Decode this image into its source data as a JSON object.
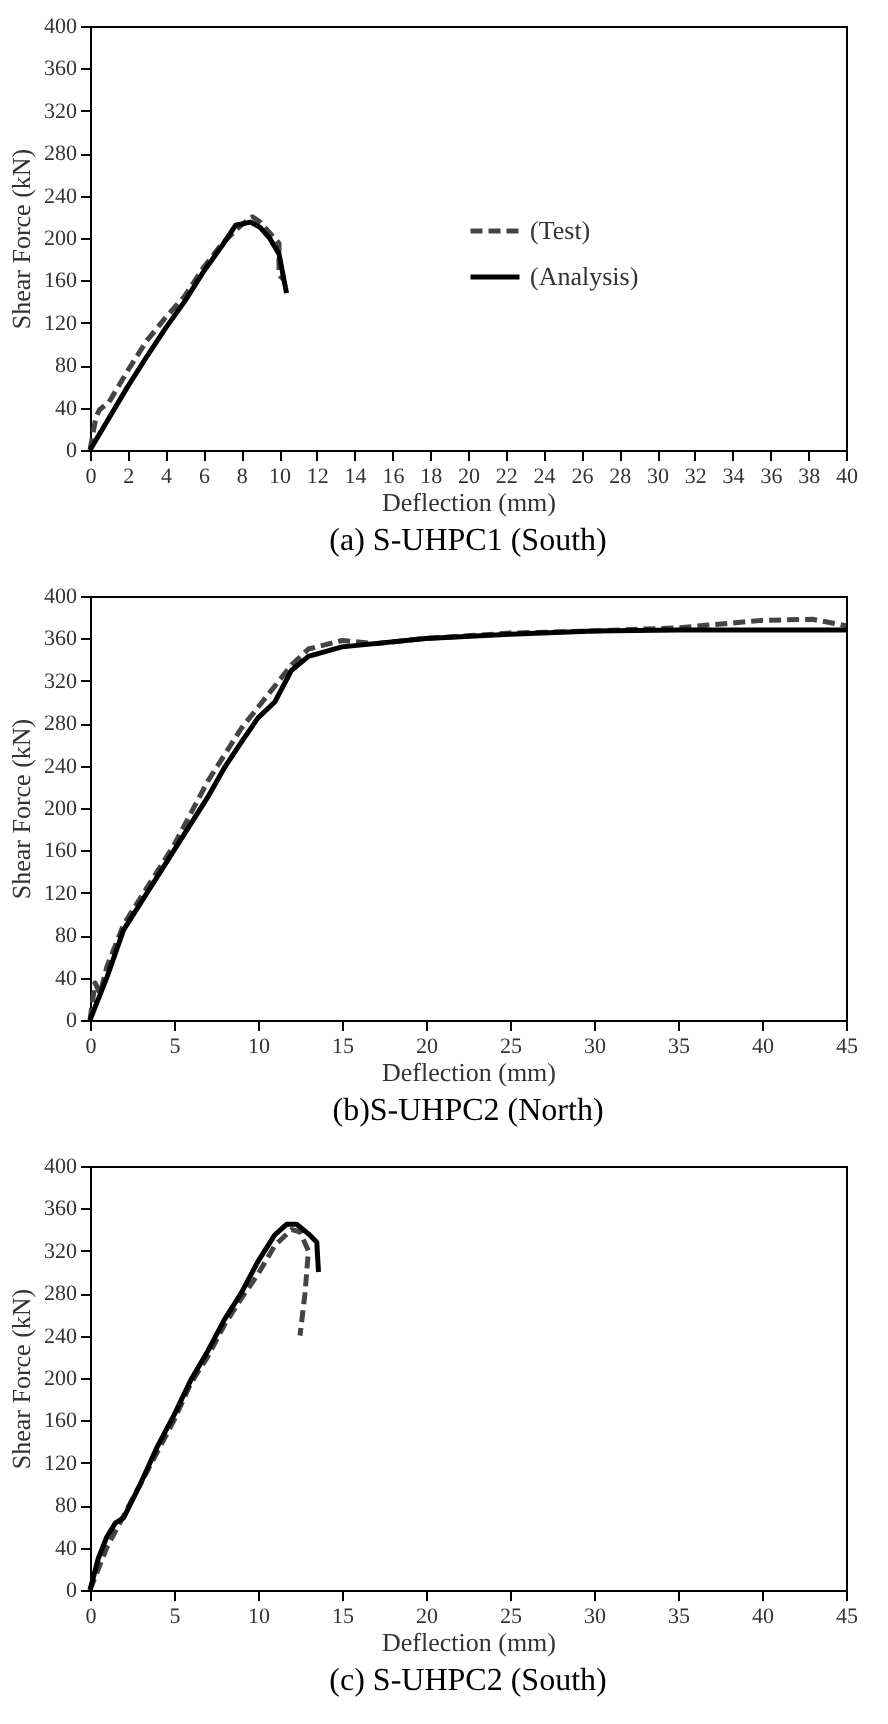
{
  "chart_data": [
    {
      "type": "line",
      "title": "(a) S-UHPC1 (South)",
      "xlabel": "Deflection (mm)",
      "ylabel": "Shear Force (kN)",
      "xlim": [
        0,
        40
      ],
      "xticks": [
        0,
        2,
        4,
        6,
        8,
        10,
        12,
        14,
        16,
        18,
        20,
        22,
        24,
        26,
        28,
        30,
        32,
        34,
        36,
        38,
        40
      ],
      "ylim": [
        0,
        400
      ],
      "yticks": [
        0,
        40,
        80,
        120,
        160,
        200,
        240,
        280,
        320,
        360,
        400
      ],
      "legend": "right",
      "series": [
        {
          "name": "(Test)",
          "color": "#444444",
          "line_style": "dashed",
          "x": [
            0,
            0.3,
            0.5,
            1,
            2,
            3,
            4,
            5,
            6,
            7,
            8,
            8.6,
            9,
            9.5,
            10,
            10,
            10.3
          ],
          "values": [
            0,
            30,
            38,
            45,
            75,
            103,
            125,
            145,
            172,
            195,
            212,
            220,
            215,
            205,
            195,
            165,
            160
          ]
        },
        {
          "name": "(Analysis)",
          "color": "#000000",
          "line_style": "solid",
          "x": [
            0,
            1,
            2,
            3,
            4,
            5,
            6,
            7,
            7.7,
            8.5,
            9,
            9.5,
            10,
            10.4
          ],
          "values": [
            0,
            30,
            60,
            88,
            115,
            140,
            168,
            193,
            212,
            215,
            210,
            200,
            185,
            148
          ]
        }
      ]
    },
    {
      "type": "line",
      "title": "(b)S-UHPC2 (North)",
      "xlabel": "Deflection (mm)",
      "ylabel": "Shear Force (kN)",
      "xlim": [
        0,
        45
      ],
      "xticks": [
        0,
        5,
        10,
        15,
        20,
        25,
        30,
        35,
        40,
        45
      ],
      "ylim": [
        0,
        400
      ],
      "yticks": [
        0,
        40,
        80,
        120,
        160,
        200,
        240,
        280,
        320,
        360,
        400
      ],
      "legend": "right",
      "series": [
        {
          "name": "(Test)",
          "color": "#444444",
          "line_style": "dashed",
          "x": [
            0,
            0.3,
            0.6,
            1,
            2,
            3,
            4,
            5,
            6,
            7,
            8,
            9,
            10,
            11,
            12,
            13,
            15,
            17,
            20,
            25,
            30,
            35,
            40,
            43,
            45
          ],
          "values": [
            0,
            35,
            25,
            50,
            90,
            115,
            140,
            165,
            195,
            225,
            250,
            275,
            295,
            315,
            335,
            350,
            358,
            355,
            360,
            365,
            367,
            370,
            377,
            378,
            372
          ]
        },
        {
          "name": "(Analysis)",
          "color": "#000000",
          "line_style": "solid",
          "x": [
            0,
            1,
            2,
            3,
            4,
            5,
            6,
            7,
            8,
            9,
            10,
            11,
            12,
            13,
            15,
            20,
            25,
            30,
            35,
            45
          ],
          "values": [
            0,
            40,
            85,
            110,
            135,
            160,
            185,
            210,
            238,
            262,
            285,
            300,
            330,
            343,
            352,
            360,
            364,
            367,
            368,
            368
          ]
        }
      ]
    },
    {
      "type": "line",
      "title": "(c) S-UHPC2 (South)",
      "xlabel": "Deflection (mm)",
      "ylabel": "Shear Force (kN)",
      "xlim": [
        0,
        45
      ],
      "xticks": [
        0,
        5,
        10,
        15,
        20,
        25,
        30,
        35,
        40,
        45
      ],
      "ylim": [
        0,
        400
      ],
      "yticks": [
        0,
        40,
        80,
        120,
        160,
        200,
        240,
        280,
        320,
        360,
        400
      ],
      "legend": "right",
      "series": [
        {
          "name": "(Test)",
          "color": "#444444",
          "line_style": "dashed",
          "x": [
            0,
            0.5,
            1,
            2,
            3,
            4,
            5,
            6,
            7,
            8,
            9,
            10,
            11,
            12,
            12.5,
            13,
            12.8,
            12.5
          ],
          "values": [
            0,
            20,
            40,
            70,
            100,
            130,
            160,
            195,
            220,
            250,
            275,
            298,
            325,
            340,
            338,
            320,
            280,
            240
          ]
        },
        {
          "name": "(Analysis)",
          "color": "#000000",
          "line_style": "solid",
          "x": [
            0,
            0.5,
            1,
            1.5,
            2,
            3,
            4,
            5,
            6,
            7,
            8,
            9,
            10,
            11,
            11.7,
            12.3,
            13,
            13.5,
            13.6
          ],
          "values": [
            0,
            30,
            50,
            63,
            68,
            100,
            135,
            165,
            198,
            225,
            255,
            280,
            310,
            335,
            345,
            345,
            336,
            328,
            300
          ]
        }
      ]
    }
  ]
}
